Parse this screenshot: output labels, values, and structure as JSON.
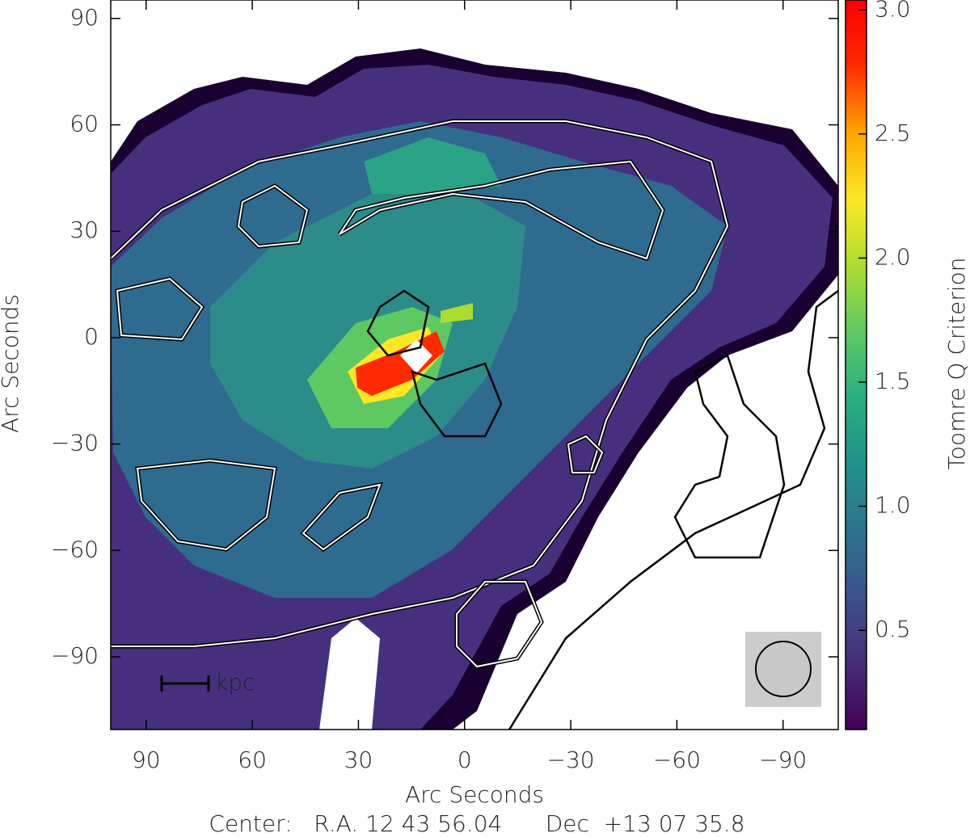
{
  "chart_data": {
    "type": "image-map",
    "x_label": "Arc Seconds",
    "y_label": "Arc Seconds",
    "colorbar_label": "Toomre Q Criterion",
    "footer": "Center:   R.A. 12 43 56.04      Dec  +13 07 35.8",
    "scale_bar_label": "kpc",
    "xlim": [
      100,
      -105.6
    ],
    "ylim": [
      -110.5,
      95.2
    ],
    "xticks": [
      90,
      60,
      30,
      0,
      {
        "value": -30,
        "label": "−30"
      },
      {
        "value": -60,
        "label": "−60"
      },
      {
        "value": -90,
        "label": "−90"
      }
    ],
    "yticks": [
      90,
      60,
      30,
      0,
      {
        "value": -30,
        "label": "−30"
      },
      {
        "value": -60,
        "label": "−60"
      },
      {
        "value": -90,
        "label": "−90"
      }
    ],
    "clim": [
      0.1,
      3.04
    ],
    "cticks": [
      0.5,
      {
        "value": 1,
        "label": "1.0"
      },
      1.5,
      {
        "value": 2,
        "label": "2.0"
      },
      2.5,
      {
        "value": 3,
        "label": "3.0"
      }
    ],
    "colormap": [
      "#440154",
      "#472d7b",
      "#3b528b",
      "#2c728e",
      "#21918c",
      "#28ae80",
      "#5ec962",
      "#addc30",
      "#fde725",
      "#ffa500",
      "#ff2a00",
      "#ff0000"
    ]
  }
}
